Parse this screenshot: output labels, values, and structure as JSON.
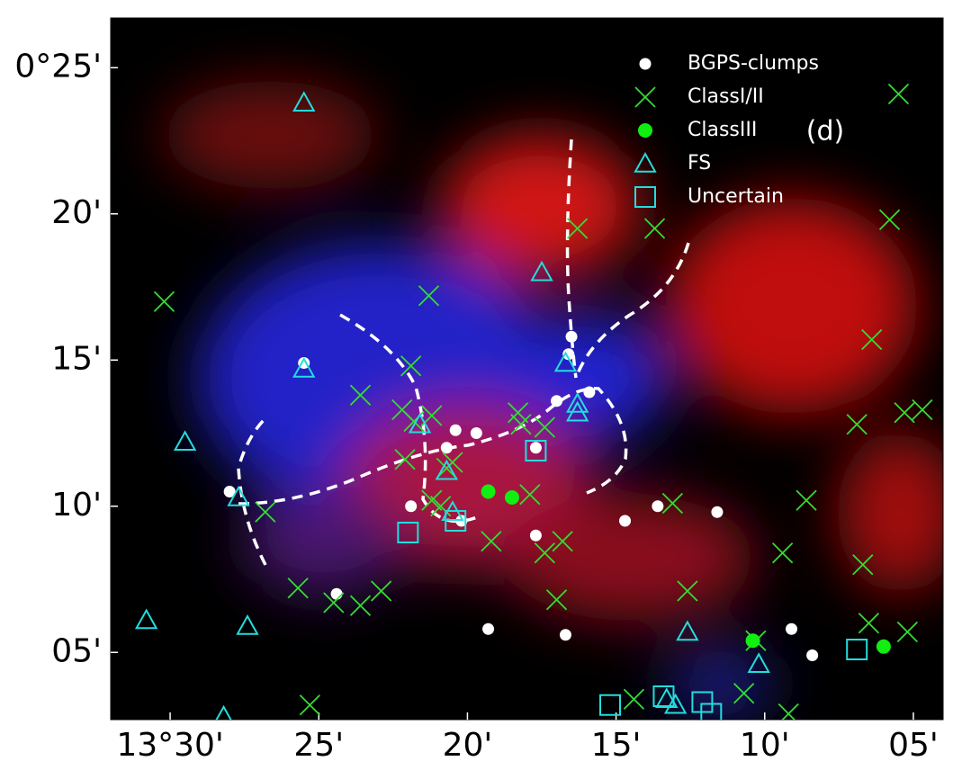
{
  "chart_data": {
    "type": "scatter",
    "annotation": "(d)",
    "xlim": [
      32.0,
      4.0
    ],
    "ylim": [
      2.7,
      26.7
    ],
    "xticks": [
      {
        "value": 30,
        "label": "13°30'"
      },
      {
        "value": 25,
        "label": "25'"
      },
      {
        "value": 20,
        "label": "20'"
      },
      {
        "value": 15,
        "label": "15'"
      },
      {
        "value": 10,
        "label": "10'"
      },
      {
        "value": 5,
        "label": "05'"
      }
    ],
    "yticks": [
      {
        "value": 25,
        "label": "0°25'"
      },
      {
        "value": 20,
        "label": "20'"
      },
      {
        "value": 15,
        "label": "15'"
      },
      {
        "value": 10,
        "label": "10'"
      },
      {
        "value": 5,
        "label": "05'"
      }
    ],
    "legend": "upper right",
    "series": [
      {
        "name": "BGPS-clumps",
        "color": "#ffffff",
        "marker": "circle",
        "x": [
          25.5,
          28.0,
          24.4,
          21.9,
          20.7,
          20.4,
          19.7,
          20.2,
          17.7,
          17.7,
          17.0,
          16.5,
          16.6,
          15.9,
          14.7,
          13.6,
          11.6,
          19.3,
          16.7,
          9.1,
          8.4
        ],
        "y": [
          14.9,
          10.5,
          7.0,
          10.0,
          12.0,
          12.6,
          12.5,
          9.5,
          12.0,
          9.0,
          13.6,
          15.8,
          15.2,
          13.9,
          9.5,
          10.0,
          9.8,
          5.8,
          5.6,
          5.8,
          4.9
        ]
      },
      {
        "name": "ClassI/II",
        "color": "#33dd33",
        "marker": "x",
        "x": [
          30.2,
          21.3,
          16.3,
          13.7,
          5.8,
          5.5,
          6.4,
          21.9,
          23.6,
          22.2,
          21.8,
          21.2,
          18.3,
          18.2,
          17.4,
          20.7,
          20.5,
          22.1,
          21.2,
          20.9,
          17.9,
          19.2,
          17.4,
          16.8,
          26.8,
          13.1,
          8.6,
          6.9,
          5.3,
          4.7,
          9.4,
          6.7,
          25.7,
          24.5,
          23.6,
          22.9,
          17.0,
          12.6,
          6.5,
          5.2,
          25.3,
          14.4,
          10.7,
          9.2,
          10.3
        ],
        "y": [
          17.0,
          17.2,
          19.5,
          19.5,
          19.8,
          24.1,
          15.7,
          14.8,
          13.8,
          13.3,
          12.9,
          13.1,
          13.2,
          12.8,
          12.7,
          11.3,
          11.5,
          11.6,
          10.2,
          10.0,
          10.4,
          8.8,
          8.4,
          8.8,
          9.8,
          10.1,
          10.2,
          12.8,
          13.2,
          13.3,
          8.4,
          8.0,
          7.2,
          6.7,
          6.6,
          7.1,
          6.8,
          7.1,
          6.0,
          5.7,
          3.2,
          3.4,
          3.6,
          2.9,
          5.4
        ]
      },
      {
        "name": "ClassIII",
        "color": "#11ee11",
        "marker": "circle",
        "x": [
          19.3,
          18.5,
          10.4,
          6.0
        ],
        "y": [
          10.5,
          10.3,
          5.4,
          5.2
        ]
      },
      {
        "name": "FS",
        "color": "#22dddd",
        "marker": "triangle",
        "x": [
          25.5,
          17.5,
          25.5,
          29.5,
          16.7,
          16.3,
          16.3,
          21.6,
          20.7,
          27.7,
          20.5,
          30.8,
          27.4,
          12.6,
          10.2,
          13.3,
          13.0,
          28.2
        ],
        "y": [
          23.8,
          18.0,
          14.7,
          12.2,
          14.9,
          13.5,
          13.2,
          12.8,
          11.2,
          10.3,
          9.8,
          6.1,
          5.9,
          5.7,
          4.6,
          3.4,
          3.2,
          2.8
        ]
      },
      {
        "name": "Uncertain",
        "color": "#22dddd",
        "marker": "square",
        "x": [
          17.7,
          22.0,
          15.2,
          13.4,
          12.1,
          11.8,
          6.9,
          20.4
        ],
        "y": [
          11.9,
          9.1,
          3.2,
          3.5,
          3.3,
          2.9,
          5.1,
          9.5
        ]
      }
    ]
  }
}
